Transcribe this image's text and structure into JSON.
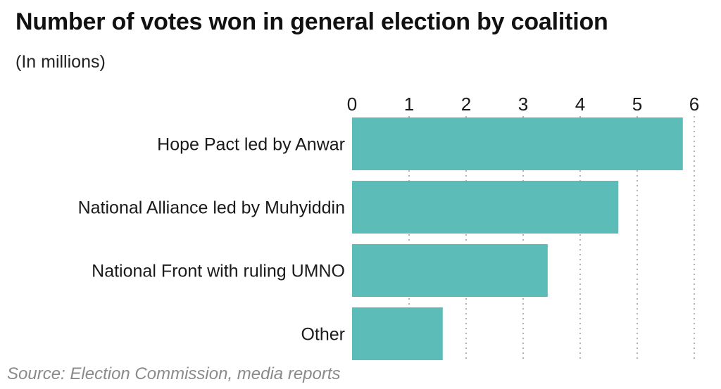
{
  "title": "Number of votes won in general election by coalition",
  "subtitle": "(In millions)",
  "source": "Source: Election Commission, media reports",
  "colors": {
    "bar": "#5bbcb8",
    "grid": "#9a9a9a"
  },
  "chart_data": {
    "type": "bar",
    "orientation": "horizontal",
    "title": "Number of votes won in general election by coalition",
    "subtitle": "(In millions)",
    "categories": [
      "Hope Pact led by Anwar",
      "National Alliance led by Muhyiddin",
      "National Front with ruling UMNO",
      "Other"
    ],
    "values": [
      5.8,
      4.67,
      3.43,
      1.59
    ],
    "xlim": [
      0,
      6
    ],
    "xticks": [
      "0",
      "1",
      "2",
      "3",
      "4",
      "5",
      "6"
    ],
    "tick_position": "top",
    "grid": "vertical dotted",
    "legend": "none"
  }
}
